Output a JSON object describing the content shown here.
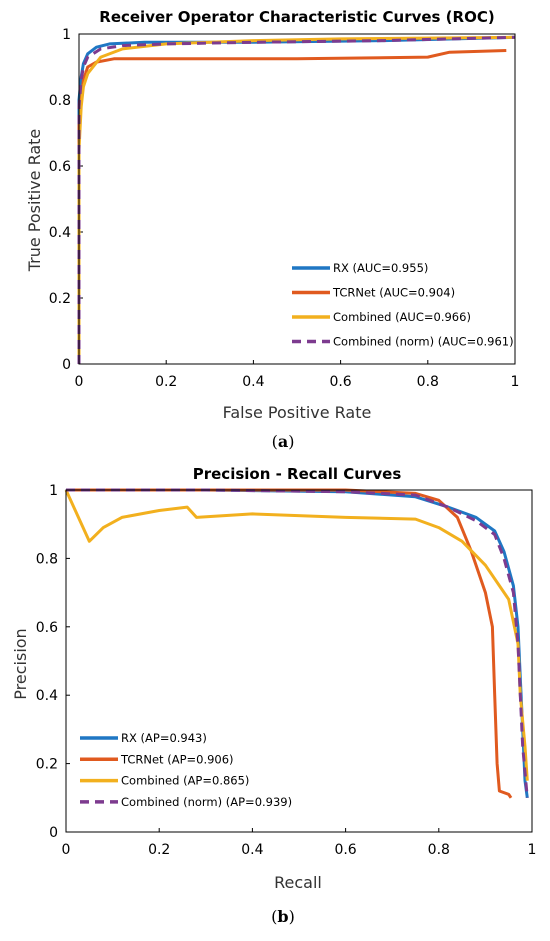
{
  "chart_data": [
    {
      "type": "line",
      "title": "Receiver Operator Characteristic Curves (ROC)",
      "xlabel": "False Positive Rate",
      "ylabel": "True Positive Rate",
      "caption_open": "(",
      "caption_letter": "a",
      "caption_close": ")",
      "xlim": [
        0,
        1
      ],
      "ylim": [
        0,
        1
      ],
      "xticks": [
        "0",
        "0.2",
        "0.4",
        "0.6",
        "0.8",
        "1"
      ],
      "yticks": [
        "0",
        "0.2",
        "0.4",
        "0.6",
        "0.8",
        "1"
      ],
      "legend_position": "bottom-right",
      "series": [
        {
          "name": "RX (AUC=0.955)",
          "color": "#1f77c4",
          "dash": "solid",
          "points": [
            [
              0,
              0
            ],
            [
              0,
              0.8
            ],
            [
              0.005,
              0.87
            ],
            [
              0.01,
              0.91
            ],
            [
              0.02,
              0.94
            ],
            [
              0.04,
              0.96
            ],
            [
              0.07,
              0.97
            ],
            [
              0.15,
              0.975
            ],
            [
              0.4,
              0.975
            ],
            [
              0.7,
              0.98
            ],
            [
              1,
              0.99
            ]
          ]
        },
        {
          "name": "TCRNet (AUC=0.904)",
          "color": "#e05a1f",
          "dash": "solid",
          "points": [
            [
              0,
              0
            ],
            [
              0,
              0.72
            ],
            [
              0.005,
              0.8
            ],
            [
              0.01,
              0.86
            ],
            [
              0.02,
              0.9
            ],
            [
              0.04,
              0.915
            ],
            [
              0.08,
              0.925
            ],
            [
              0.3,
              0.925
            ],
            [
              0.5,
              0.925
            ],
            [
              0.8,
              0.93
            ],
            [
              0.85,
              0.945
            ],
            [
              0.98,
              0.95
            ]
          ]
        },
        {
          "name": "Combined (AUC=0.966)",
          "color": "#f2b01e",
          "dash": "solid",
          "points": [
            [
              0,
              0
            ],
            [
              0,
              0.65
            ],
            [
              0.005,
              0.78
            ],
            [
              0.01,
              0.84
            ],
            [
              0.02,
              0.88
            ],
            [
              0.05,
              0.93
            ],
            [
              0.1,
              0.955
            ],
            [
              0.2,
              0.97
            ],
            [
              0.4,
              0.98
            ],
            [
              0.6,
              0.985
            ],
            [
              1,
              0.99
            ]
          ]
        },
        {
          "name": "Combined (norm) (AUC=0.961)",
          "color": "#7d3b8f",
          "dash": "dashed",
          "points": [
            [
              0,
              0
            ],
            [
              0,
              0.78
            ],
            [
              0.005,
              0.86
            ],
            [
              0.01,
              0.9
            ],
            [
              0.02,
              0.93
            ],
            [
              0.05,
              0.955
            ],
            [
              0.1,
              0.965
            ],
            [
              0.2,
              0.97
            ],
            [
              0.4,
              0.975
            ],
            [
              0.7,
              0.98
            ],
            [
              1,
              0.99
            ]
          ]
        }
      ]
    },
    {
      "type": "line",
      "title": "Precision - Recall Curves",
      "xlabel": "Recall",
      "ylabel": "Precision",
      "caption_open": "(",
      "caption_letter": "b",
      "caption_close": ")",
      "xlim": [
        0,
        1
      ],
      "ylim": [
        0,
        1
      ],
      "xticks": [
        "0",
        "0.2",
        "0.4",
        "0.6",
        "0.8",
        "1"
      ],
      "yticks": [
        "0",
        "0.2",
        "0.4",
        "0.6",
        "0.8",
        "1"
      ],
      "legend_position": "bottom-left",
      "series": [
        {
          "name": "RX (AP=0.943)",
          "color": "#1f77c4",
          "dash": "solid",
          "points": [
            [
              0,
              1
            ],
            [
              0.3,
              1
            ],
            [
              0.6,
              0.995
            ],
            [
              0.75,
              0.98
            ],
            [
              0.82,
              0.95
            ],
            [
              0.88,
              0.92
            ],
            [
              0.92,
              0.88
            ],
            [
              0.94,
              0.82
            ],
            [
              0.96,
              0.72
            ],
            [
              0.97,
              0.6
            ],
            [
              0.975,
              0.45
            ],
            [
              0.98,
              0.3
            ],
            [
              0.985,
              0.15
            ],
            [
              0.99,
              0.1
            ]
          ]
        },
        {
          "name": "TCRNet (AP=0.906)",
          "color": "#e05a1f",
          "dash": "solid",
          "points": [
            [
              0,
              1
            ],
            [
              0.6,
              1
            ],
            [
              0.75,
              0.99
            ],
            [
              0.8,
              0.97
            ],
            [
              0.84,
              0.92
            ],
            [
              0.87,
              0.82
            ],
            [
              0.9,
              0.7
            ],
            [
              0.915,
              0.6
            ],
            [
              0.92,
              0.4
            ],
            [
              0.925,
              0.2
            ],
            [
              0.93,
              0.12
            ],
            [
              0.95,
              0.11
            ],
            [
              0.955,
              0.1
            ]
          ]
        },
        {
          "name": "Combined (AP=0.865)",
          "color": "#f2b01e",
          "dash": "solid",
          "points": [
            [
              0,
              1
            ],
            [
              0.05,
              0.85
            ],
            [
              0.08,
              0.89
            ],
            [
              0.12,
              0.92
            ],
            [
              0.2,
              0.94
            ],
            [
              0.26,
              0.95
            ],
            [
              0.28,
              0.92
            ],
            [
              0.4,
              0.93
            ],
            [
              0.6,
              0.92
            ],
            [
              0.75,
              0.915
            ],
            [
              0.8,
              0.89
            ],
            [
              0.85,
              0.85
            ],
            [
              0.9,
              0.78
            ],
            [
              0.95,
              0.68
            ],
            [
              0.97,
              0.55
            ],
            [
              0.975,
              0.4
            ],
            [
              0.985,
              0.25
            ],
            [
              0.99,
              0.15
            ]
          ]
        },
        {
          "name": "Combined (norm) (AP=0.939)",
          "color": "#7d3b8f",
          "dash": "dashed",
          "points": [
            [
              0,
              1
            ],
            [
              0.3,
              1
            ],
            [
              0.6,
              0.995
            ],
            [
              0.75,
              0.985
            ],
            [
              0.82,
              0.95
            ],
            [
              0.88,
              0.91
            ],
            [
              0.92,
              0.87
            ],
            [
              0.94,
              0.8
            ],
            [
              0.96,
              0.7
            ],
            [
              0.97,
              0.55
            ],
            [
              0.975,
              0.4
            ],
            [
              0.98,
              0.25
            ],
            [
              0.99,
              0.1
            ]
          ]
        }
      ]
    }
  ]
}
